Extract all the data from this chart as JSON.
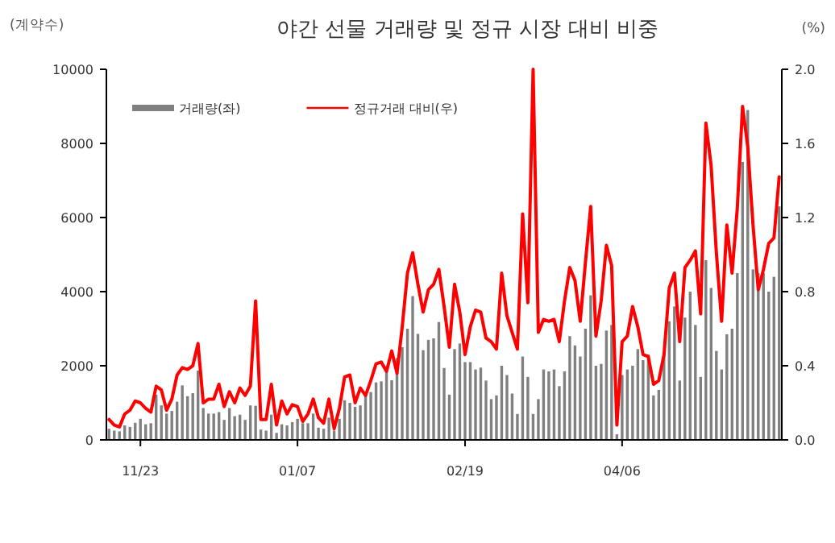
{
  "chart_data": {
    "type": "bar",
    "title": "야간 선물 거래량 및 정규 시장 대비 비중",
    "ylabel": "(계약수)",
    "y2label": "(%)",
    "categories": [
      null,
      null,
      null,
      null,
      null,
      null,
      "11/23",
      null,
      null,
      null,
      null,
      null,
      null,
      null,
      null,
      null,
      null,
      null,
      null,
      null,
      null,
      null,
      null,
      null,
      null,
      null,
      null,
      null,
      null,
      null,
      null,
      null,
      null,
      null,
      null,
      null,
      "01/07",
      null,
      null,
      null,
      null,
      null,
      null,
      null,
      null,
      null,
      null,
      null,
      null,
      null,
      null,
      null,
      null,
      null,
      null,
      null,
      null,
      null,
      null,
      null,
      null,
      null,
      null,
      null,
      null,
      null,
      null,
      null,
      "02/19",
      null,
      null,
      null,
      null,
      null,
      null,
      null,
      null,
      null,
      null,
      null,
      null,
      null,
      null,
      null,
      null,
      null,
      null,
      null,
      null,
      null,
      null,
      null,
      null,
      null,
      null,
      null,
      null,
      null,
      "04/06",
      null,
      null,
      null,
      null,
      null,
      null,
      null,
      null,
      null,
      null,
      null,
      null,
      null,
      null,
      null,
      null,
      null,
      null,
      null,
      null,
      null,
      null,
      null,
      null,
      null,
      null,
      null,
      null,
      null,
      null
    ],
    "series": [
      {
        "name": "거래량(좌)",
        "color": "#808080",
        "values": [
          300,
          250,
          230,
          390,
          350,
          460,
          570,
          420,
          450,
          1220,
          930,
          710,
          780,
          1030,
          1470,
          1180,
          1260,
          1870,
          860,
          710,
          710,
          750,
          540,
          860,
          640,
          680,
          540,
          930,
          920,
          280,
          250,
          680,
          190,
          420,
          390,
          480,
          570,
          450,
          450,
          710,
          330,
          300,
          600,
          250,
          570,
          1070,
          1000,
          890,
          930,
          1220,
          1290,
          1550,
          1580,
          1830,
          1610,
          2210,
          2500,
          3000,
          3880,
          2860,
          2420,
          2700,
          2740,
          3180,
          1940,
          1220,
          2450,
          2600,
          2100,
          2100,
          1900,
          1950,
          1600,
          1100,
          1200,
          2000,
          1750,
          1250,
          700,
          2250,
          1700,
          700,
          1100,
          1900,
          1850,
          1900,
          1450,
          1850,
          2800,
          2550,
          2250,
          3000,
          3900,
          2000,
          2050,
          2950,
          3100,
          150,
          1750,
          1900,
          2000,
          2450,
          2150,
          2300,
          1200,
          1350,
          2300,
          3200,
          3600,
          1600,
          3300,
          4000,
          3100,
          1700,
          4850,
          4100,
          2400,
          1900,
          2850,
          3000,
          4500,
          7500,
          8900,
          4600,
          4500,
          4500,
          4000,
          4400,
          6300
        ]
      },
      {
        "name": "정규거래 대비(우)",
        "type": "line",
        "axis": "y2",
        "color": "#ff0000",
        "values": [
          0.11,
          0.08,
          0.07,
          0.14,
          0.16,
          0.21,
          0.2,
          0.17,
          0.15,
          0.29,
          0.27,
          0.16,
          0.22,
          0.35,
          0.39,
          0.38,
          0.4,
          0.52,
          0.2,
          0.22,
          0.22,
          0.3,
          0.18,
          0.26,
          0.2,
          0.28,
          0.24,
          0.29,
          0.75,
          0.11,
          0.11,
          0.3,
          0.08,
          0.21,
          0.14,
          0.19,
          0.18,
          0.1,
          0.14,
          0.22,
          0.12,
          0.09,
          0.22,
          0.06,
          0.17,
          0.34,
          0.35,
          0.2,
          0.28,
          0.24,
          0.32,
          0.41,
          0.42,
          0.37,
          0.48,
          0.36,
          0.61,
          0.9,
          1.01,
          0.84,
          0.69,
          0.81,
          0.84,
          0.92,
          0.72,
          0.5,
          0.84,
          0.69,
          0.46,
          0.61,
          0.7,
          0.69,
          0.55,
          0.53,
          0.49,
          0.9,
          0.67,
          0.58,
          0.49,
          1.22,
          0.74,
          2.0,
          0.58,
          0.65,
          0.64,
          0.65,
          0.53,
          0.75,
          0.93,
          0.86,
          0.64,
          0.96,
          1.26,
          0.56,
          0.75,
          1.05,
          0.94,
          0.08,
          0.53,
          0.56,
          0.72,
          0.61,
          0.46,
          0.45,
          0.3,
          0.32,
          0.46,
          0.82,
          0.9,
          0.53,
          0.93,
          0.97,
          1.02,
          0.68,
          1.71,
          1.48,
          1.01,
          0.64,
          1.16,
          0.9,
          1.25,
          1.8,
          1.58,
          1.16,
          0.81,
          0.92,
          1.06,
          1.09,
          1.42
        ]
      }
    ],
    "ylim": [
      0,
      10000
    ],
    "yticks": [
      0,
      2000,
      4000,
      6000,
      8000,
      10000
    ],
    "y2lim": [
      0,
      2
    ],
    "y2ticks": [
      {
        "value": 0,
        "label": "0.0"
      },
      0.4,
      0.8,
      1.2,
      1.6,
      {
        "value": 2,
        "label": "2.0"
      }
    ],
    "legend": "top left"
  }
}
